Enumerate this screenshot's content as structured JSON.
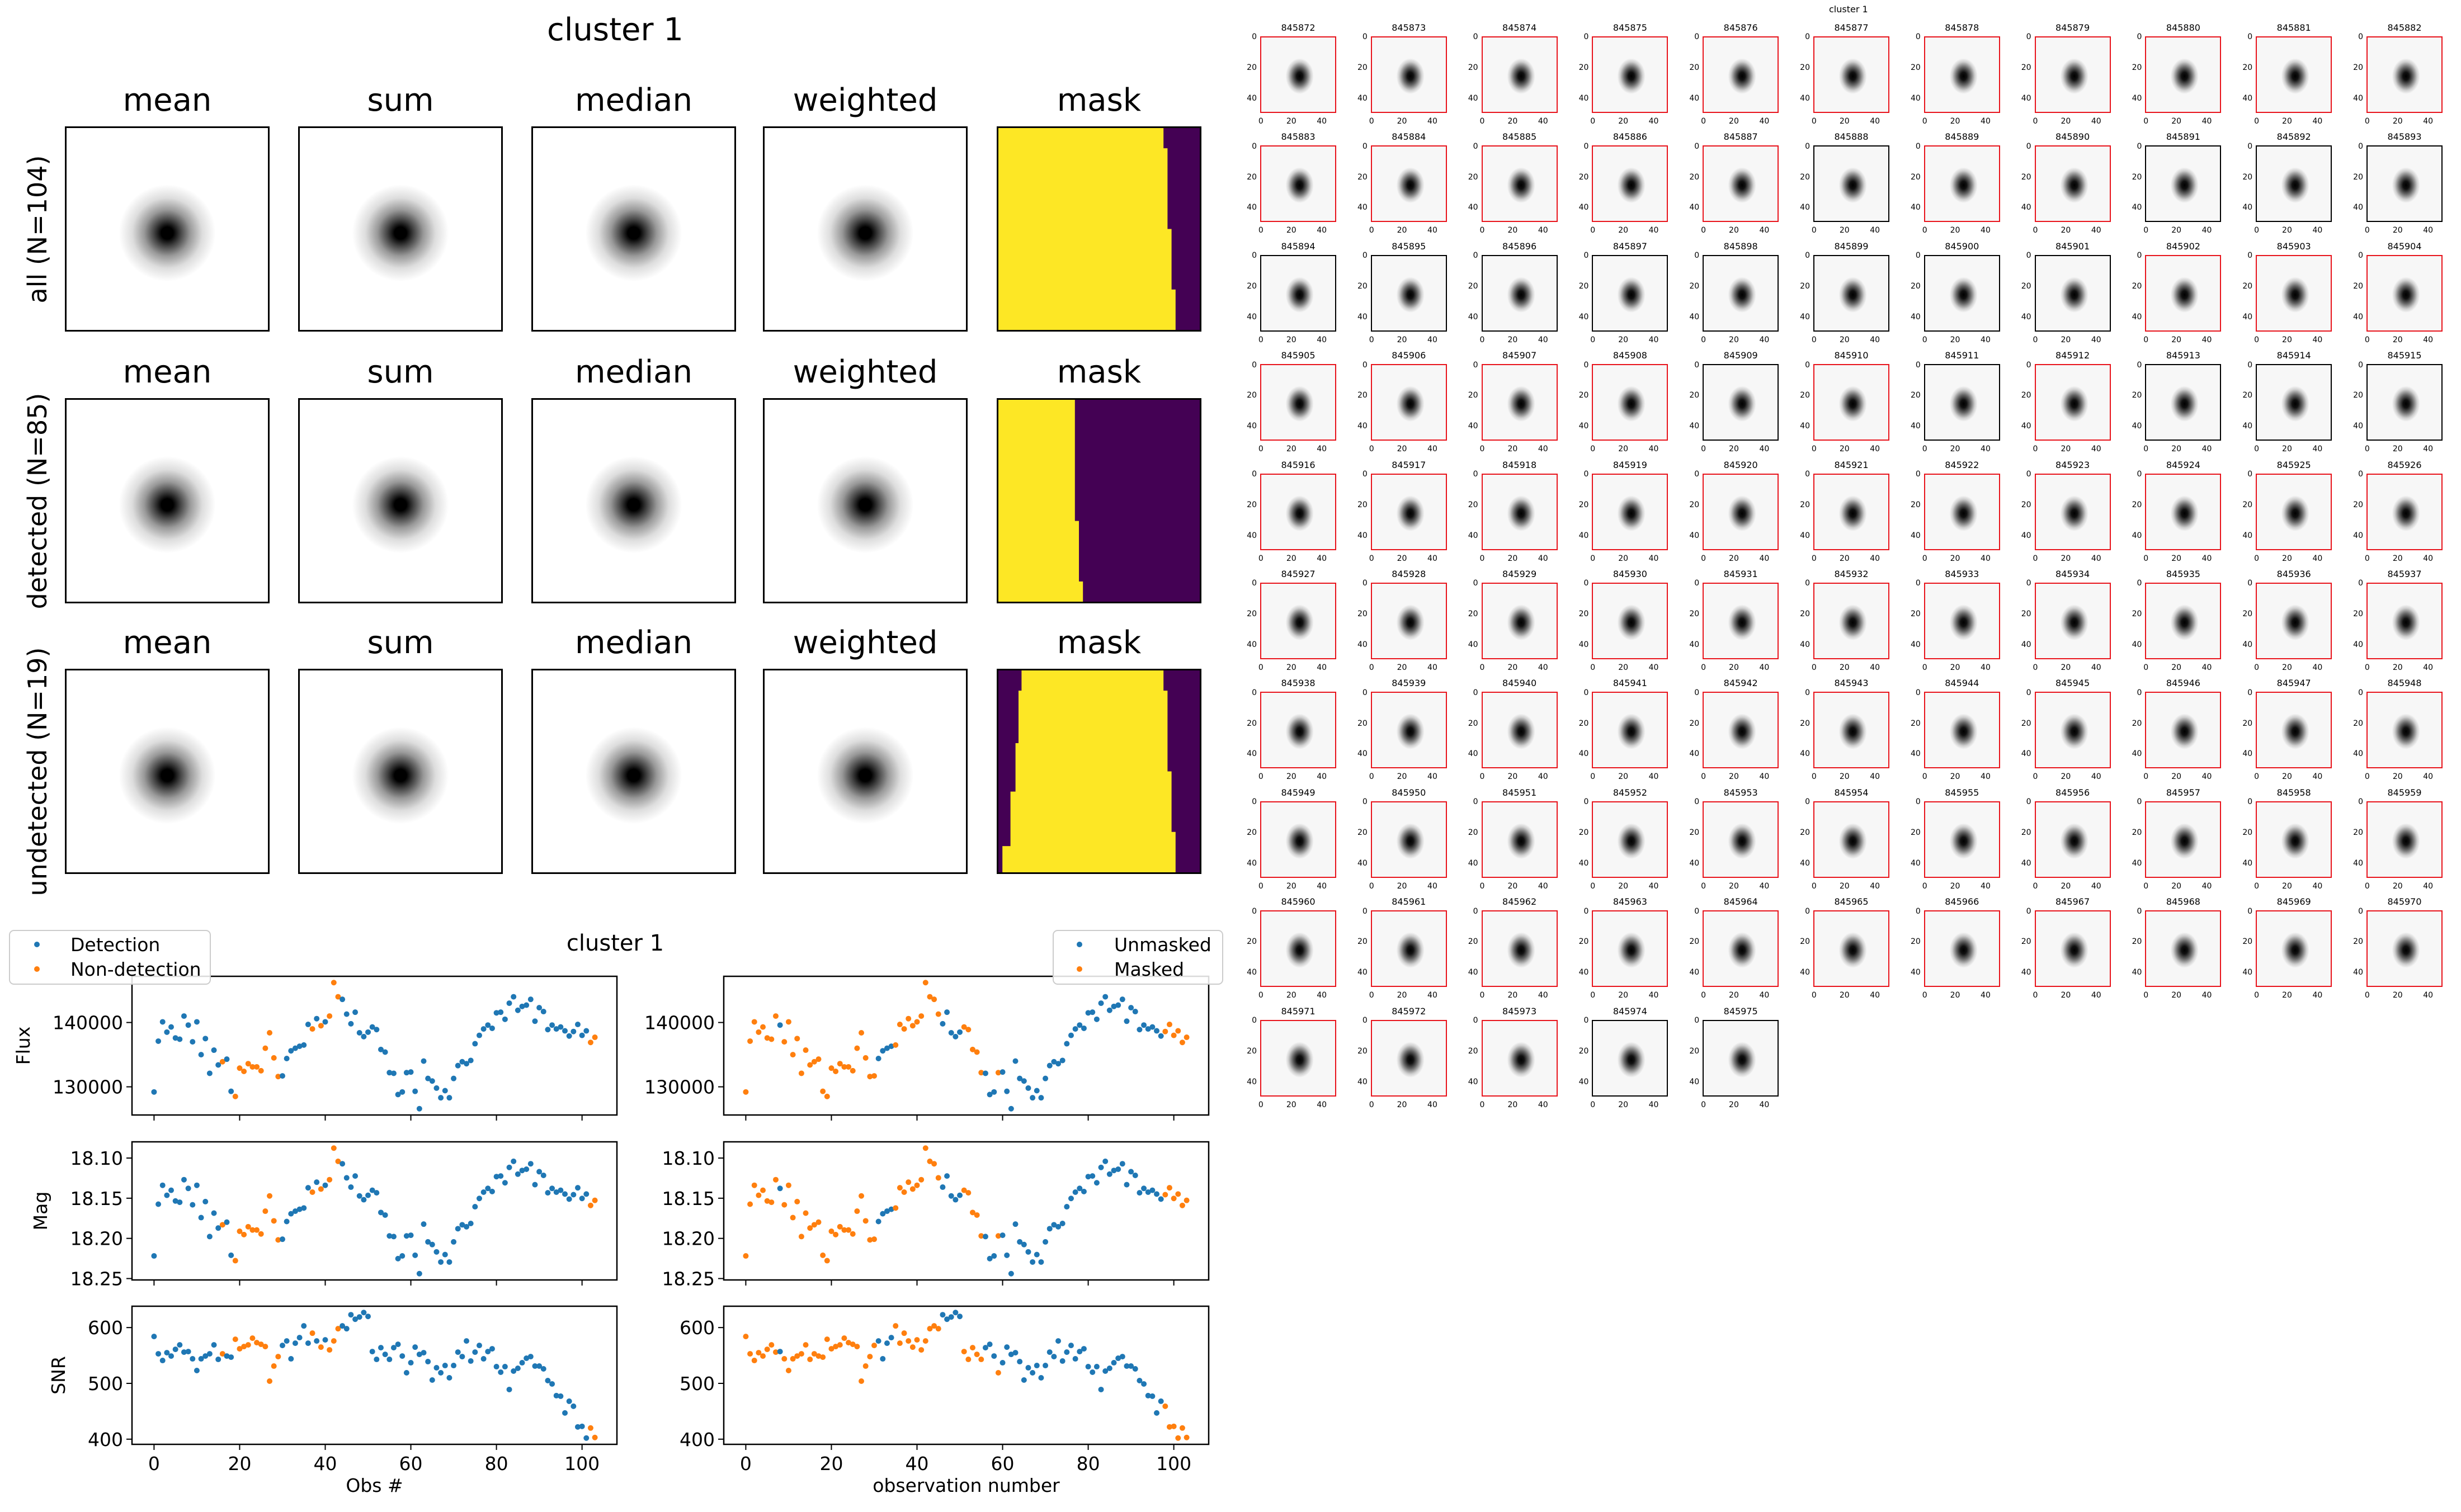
{
  "chart_data": {
    "stamp_grid": {
      "type": "heatmap",
      "title": "cluster 1",
      "columns": [
        "mean",
        "sum",
        "median",
        "weighted",
        "mask"
      ],
      "rows": [
        "all (N=104)",
        "detected (N=85)",
        "undetected (N=19)"
      ],
      "mask_colors": {
        "on": "#fde725",
        "off": "#440154"
      }
    },
    "lightcurve": {
      "type": "scatter",
      "title": "cluster 1",
      "obs_start": 0,
      "flux": [
        129200,
        137100,
        140100,
        138500,
        139300,
        137600,
        137400,
        141000,
        139600,
        137000,
        140100,
        135000,
        137500,
        132100,
        135700,
        133400,
        133900,
        134300,
        129300,
        128500,
        132900,
        132400,
        133600,
        133100,
        133100,
        132500,
        136000,
        138400,
        134500,
        131600,
        131700,
        134400,
        135600,
        136000,
        136300,
        136500,
        139700,
        139000,
        140600,
        139500,
        140100,
        141000,
        146200,
        144000,
        143600,
        141300,
        139800,
        141600,
        138400,
        137800,
        138500,
        139300,
        138900,
        135800,
        135400,
        132200,
        132100,
        128800,
        129200,
        132200,
        132300,
        129300,
        126600,
        134000,
        131300,
        130900,
        129800,
        128300,
        129400,
        128300,
        131300,
        133300,
        133900,
        133600,
        134100,
        136700,
        138000,
        139000,
        139600,
        139100,
        141500,
        141600,
        140500,
        143000,
        144000,
        141900,
        142500,
        142700,
        143600,
        140200,
        142300,
        141700,
        138900,
        139600,
        139000,
        139300,
        138700,
        137900,
        138600,
        139700,
        138000,
        138700,
        136900,
        137700
      ],
      "snr": [
        584,
        553,
        541,
        555,
        549,
        561,
        569,
        556,
        557,
        544,
        523,
        544,
        549,
        553,
        569,
        543,
        553,
        549,
        547,
        579,
        562,
        566,
        569,
        581,
        573,
        570,
        566,
        504,
        531,
        548,
        568,
        576,
        544,
        572,
        582,
        603,
        572,
        590,
        576,
        565,
        578,
        560,
        576,
        598,
        603,
        598,
        623,
        615,
        619,
        627,
        620,
        557,
        543,
        564,
        552,
        543,
        564,
        570,
        549,
        519,
        537,
        565,
        552,
        555,
        539,
        506,
        528,
        519,
        532,
        510,
        532,
        556,
        548,
        576,
        540,
        556,
        568,
        544,
        557,
        562,
        530,
        520,
        530,
        489,
        522,
        527,
        537,
        545,
        548,
        531,
        531,
        526,
        505,
        499,
        478,
        477,
        447,
        468,
        459,
        422,
        423,
        402,
        420,
        403
      ],
      "mag_zeropoint": 31.0,
      "undetected_indices": [
        16,
        19,
        20,
        21,
        22,
        23,
        24,
        25,
        26,
        27,
        28,
        29,
        37,
        39,
        41,
        42,
        43,
        102,
        103
      ],
      "masked_indices": [
        0,
        1,
        2,
        3,
        4,
        5,
        6,
        7,
        9,
        10,
        11,
        12,
        13,
        14,
        15,
        16,
        17,
        18,
        19,
        20,
        21,
        22,
        23,
        24,
        25,
        26,
        27,
        28,
        29,
        30,
        35,
        36,
        37,
        38,
        39,
        40,
        41,
        42,
        43,
        44,
        45,
        51,
        52,
        53,
        54,
        55,
        59,
        98,
        99,
        100,
        101,
        102,
        103
      ],
      "panels": {
        "flux": {
          "ylabel": "Flux",
          "ticks": [
            130000,
            140000
          ],
          "tick_labels": [
            "130000",
            "140000"
          ],
          "inverted": false
        },
        "mag": {
          "ylabel": "Mag",
          "ticks": [
            18.1,
            18.15,
            18.2,
            18.25
          ],
          "tick_labels": [
            "18.10",
            "18.15",
            "18.20",
            "18.25"
          ],
          "inverted": true
        },
        "snr": {
          "ylabel": "SNR",
          "ticks": [
            400,
            500,
            600
          ],
          "tick_labels": [
            "400",
            "500",
            "600"
          ],
          "inverted": false
        }
      },
      "xticks": [
        0,
        20,
        40,
        60,
        80,
        100
      ],
      "xtick_labels": [
        "0",
        "20",
        "40",
        "60",
        "80",
        "100"
      ],
      "left": {
        "xlabel": "Obs #",
        "legend": [
          "Detection",
          "Non-detection"
        ],
        "legend_position": "top-left"
      },
      "right": {
        "xlabel": "observation number",
        "legend": [
          "Unmasked",
          "Masked"
        ],
        "legend_position": "top-right"
      },
      "colors": {
        "blue": "#1f77b4",
        "orange": "#ff7f0e"
      }
    },
    "cutouts": {
      "type": "heatmap",
      "suptitle": "cluster 1",
      "tick_labels": [
        "0",
        "20",
        "40"
      ],
      "detected_border": "#e8141c",
      "undetected_border": "#000000",
      "ids": [
        "845872",
        "845873",
        "845874",
        "845875",
        "845876",
        "845877",
        "845878",
        "845879",
        "845880",
        "845881",
        "845882",
        "845883",
        "845884",
        "845885",
        "845886",
        "845887",
        "845888",
        "845889",
        "845890",
        "845891",
        "845892",
        "845893",
        "845894",
        "845895",
        "845896",
        "845897",
        "845898",
        "845899",
        "845900",
        "845901",
        "845902",
        "845903",
        "845904",
        "845905",
        "845906",
        "845907",
        "845908",
        "845909",
        "845910",
        "845911",
        "845912",
        "845913",
        "845914",
        "845915",
        "845916",
        "845917",
        "845918",
        "845919",
        "845920",
        "845921",
        "845922",
        "845923",
        "845924",
        "845925",
        "845926",
        "845927",
        "845928",
        "845929",
        "845930",
        "845931",
        "845932",
        "845933",
        "845934",
        "845935",
        "845936",
        "845937",
        "845938",
        "845939",
        "845940",
        "845941",
        "845942",
        "845943",
        "845944",
        "845945",
        "845946",
        "845947",
        "845948",
        "845949",
        "845950",
        "845951",
        "845952",
        "845953",
        "845954",
        "845955",
        "845956",
        "845957",
        "845958",
        "845959",
        "845960",
        "845961",
        "845962",
        "845963",
        "845964",
        "845965",
        "845966",
        "845967",
        "845968",
        "845969",
        "845970",
        "845971",
        "845972",
        "845973",
        "845974",
        "845975"
      ]
    }
  }
}
